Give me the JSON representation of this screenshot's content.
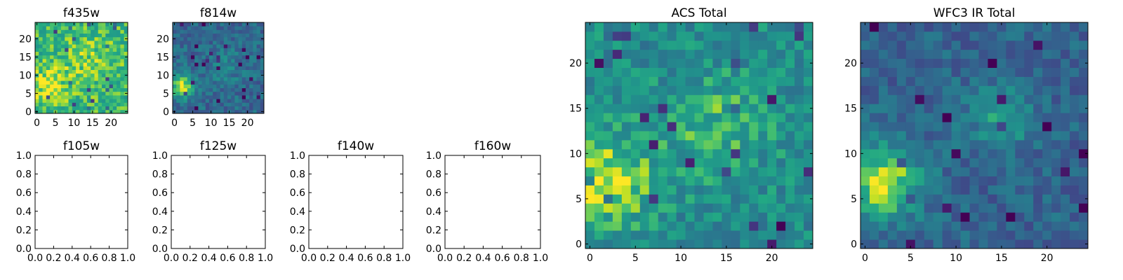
{
  "chart_data": [
    {
      "type": "heatmap",
      "title": "f435w",
      "colormap": "viridis",
      "grid_size": 25,
      "xlim": [
        -0.5,
        24.5
      ],
      "ylim": [
        -0.5,
        24.5
      ],
      "xticks": [
        0,
        5,
        10,
        15,
        20
      ],
      "yticks": [
        0,
        5,
        10,
        15,
        20
      ],
      "base": 0.78,
      "noise": 0.14,
      "blobs": [
        {
          "x": 3,
          "y": 7,
          "amp": 0.15,
          "sigma": 4
        },
        {
          "x": 14,
          "y": 14,
          "amp": 0.1,
          "sigma": 5
        }
      ],
      "seed": 11
    },
    {
      "type": "heatmap",
      "title": "f814w",
      "colormap": "viridis",
      "grid_size": 25,
      "xlim": [
        -0.5,
        24.5
      ],
      "ylim": [
        -0.5,
        24.5
      ],
      "xticks": [
        0,
        5,
        10,
        15,
        20
      ],
      "yticks": [
        0,
        5,
        10,
        15,
        20
      ],
      "base": 0.42,
      "noise": 0.14,
      "blobs": [
        {
          "x": 2,
          "y": 7,
          "amp": 0.55,
          "sigma": 2.5
        },
        {
          "x": 14,
          "y": 12,
          "amp": 0.12,
          "sigma": 4
        }
      ],
      "seed": 23
    },
    {
      "type": "empty",
      "title": "f105w",
      "xlim": [
        0,
        1
      ],
      "ylim": [
        0,
        1
      ],
      "xticks": [
        "0.0",
        "0.2",
        "0.4",
        "0.6",
        "0.8",
        "1.0"
      ],
      "yticks": [
        "0.0",
        "0.2",
        "0.4",
        "0.6",
        "0.8",
        "1.0"
      ]
    },
    {
      "type": "empty",
      "title": "f125w",
      "xlim": [
        0,
        1
      ],
      "ylim": [
        0,
        1
      ],
      "xticks": [
        "0.0",
        "0.2",
        "0.4",
        "0.6",
        "0.8",
        "1.0"
      ],
      "yticks": [
        "0.0",
        "0.2",
        "0.4",
        "0.6",
        "0.8",
        "1.0"
      ]
    },
    {
      "type": "empty",
      "title": "f140w",
      "xlim": [
        0,
        1
      ],
      "ylim": [
        0,
        1
      ],
      "xticks": [
        "0.0",
        "0.2",
        "0.4",
        "0.6",
        "0.8",
        "1.0"
      ],
      "yticks": [
        "0.0",
        "0.2",
        "0.4",
        "0.6",
        "0.8",
        "1.0"
      ]
    },
    {
      "type": "empty",
      "title": "f160w",
      "xlim": [
        0,
        1
      ],
      "ylim": [
        0,
        1
      ],
      "xticks": [
        "0.0",
        "0.2",
        "0.4",
        "0.6",
        "0.8",
        "1.0"
      ],
      "yticks": [
        "0.0",
        "0.2",
        "0.4",
        "0.6",
        "0.8",
        "1.0"
      ]
    },
    {
      "type": "heatmap",
      "title": "ACS Total",
      "colormap": "viridis",
      "grid_size": 25,
      "xlim": [
        -0.5,
        24.5
      ],
      "ylim": [
        -0.5,
        24.5
      ],
      "xticks": [
        0,
        5,
        10,
        15,
        20
      ],
      "yticks": [
        0,
        5,
        10,
        15,
        20
      ],
      "base": 0.6,
      "noise": 0.16,
      "blobs": [
        {
          "x": 2,
          "y": 7,
          "amp": 0.35,
          "sigma": 3.5
        },
        {
          "x": 14,
          "y": 13,
          "amp": 0.18,
          "sigma": 4
        }
      ],
      "seed": 37
    },
    {
      "type": "heatmap",
      "title": "WFC3 IR Total",
      "colormap": "viridis",
      "grid_size": 25,
      "xlim": [
        -0.5,
        24.5
      ],
      "ylim": [
        -0.5,
        24.5
      ],
      "xticks": [
        0,
        5,
        10,
        15,
        20
      ],
      "yticks": [
        0,
        5,
        10,
        15,
        20
      ],
      "base": 0.4,
      "noise": 0.13,
      "blobs": [
        {
          "x": 2,
          "y": 7,
          "amp": 0.55,
          "sigma": 3
        },
        {
          "x": 15,
          "y": 14,
          "amp": 0.3,
          "sigma": 2.5
        }
      ],
      "seed": 53
    }
  ]
}
